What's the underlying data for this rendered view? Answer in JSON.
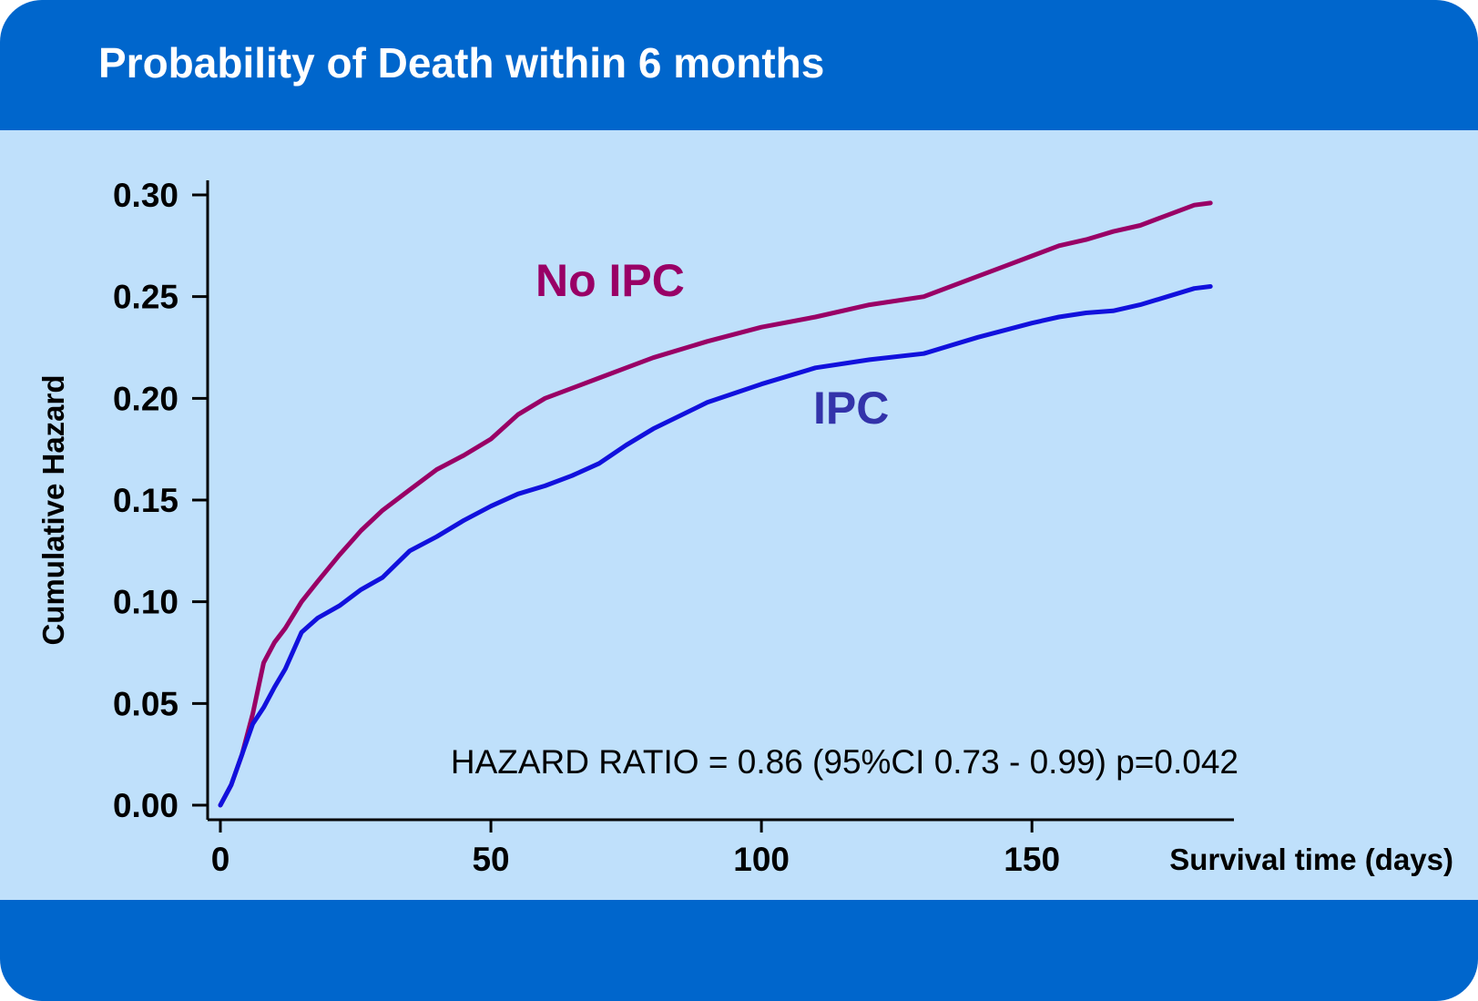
{
  "page": {
    "title": "Probability of Death within 6 months",
    "colors": {
      "frame": "#0066cc",
      "panel": "#bfe0fb",
      "no_ipc": "#990066",
      "ipc": "#1111dd",
      "ipc_label": "#3333aa"
    }
  },
  "chart_data": {
    "type": "line",
    "title": "",
    "xlabel": "Survival time (days)",
    "ylabel": "Cumulative Hazard",
    "xlim": [
      0,
      187
    ],
    "ylim": [
      0,
      0.3
    ],
    "xticks": [
      0,
      50,
      100,
      150
    ],
    "xtick_labels": [
      "0",
      "50",
      "100",
      "150"
    ],
    "yticks": [
      0,
      0.05,
      0.1,
      0.15,
      0.2,
      0.25,
      0.3
    ],
    "ytick_labels": [
      "0.00",
      "0.05",
      "0.10",
      "0.15",
      "0.20",
      "0.25",
      "0.30"
    ],
    "grid": false,
    "series": [
      {
        "name": "No IPC",
        "color": "#990066",
        "x": [
          0,
          2,
          4,
          6,
          8,
          10,
          12,
          15,
          18,
          22,
          26,
          30,
          35,
          40,
          45,
          50,
          55,
          60,
          65,
          70,
          75,
          80,
          90,
          100,
          110,
          120,
          130,
          140,
          145,
          150,
          155,
          160,
          165,
          170,
          175,
          180,
          183
        ],
        "y": [
          0,
          0.01,
          0.025,
          0.045,
          0.07,
          0.08,
          0.087,
          0.1,
          0.11,
          0.123,
          0.135,
          0.145,
          0.155,
          0.165,
          0.172,
          0.18,
          0.192,
          0.2,
          0.205,
          0.21,
          0.215,
          0.22,
          0.228,
          0.235,
          0.24,
          0.246,
          0.25,
          0.26,
          0.265,
          0.27,
          0.275,
          0.278,
          0.282,
          0.285,
          0.29,
          0.295,
          0.296
        ]
      },
      {
        "name": "IPC",
        "color": "#1111dd",
        "x": [
          0,
          2,
          4,
          6,
          8,
          10,
          12,
          15,
          18,
          22,
          26,
          30,
          35,
          40,
          45,
          50,
          55,
          60,
          65,
          70,
          75,
          80,
          90,
          100,
          110,
          120,
          130,
          140,
          150,
          155,
          160,
          165,
          170,
          175,
          180,
          183
        ],
        "y": [
          0,
          0.01,
          0.025,
          0.04,
          0.048,
          0.058,
          0.067,
          0.085,
          0.092,
          0.098,
          0.106,
          0.112,
          0.125,
          0.132,
          0.14,
          0.147,
          0.153,
          0.157,
          0.162,
          0.168,
          0.177,
          0.185,
          0.198,
          0.207,
          0.215,
          0.219,
          0.222,
          0.23,
          0.237,
          0.24,
          0.242,
          0.243,
          0.246,
          0.25,
          0.254,
          0.255
        ]
      }
    ],
    "series_labels": [
      {
        "text": "No IPC",
        "series": 0
      },
      {
        "text": "IPC",
        "series": 1
      }
    ],
    "annotation": "HAZARD RATIO = 0.86 (95%CI 0.73 - 0.99) p=0.042"
  }
}
